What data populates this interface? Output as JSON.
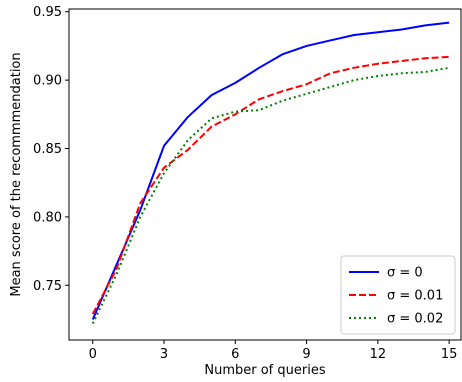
{
  "chart_data": {
    "type": "line",
    "title": "",
    "xlabel": "Number of queries",
    "ylabel": "Mean score of the recommmendation",
    "xlim": [
      -1.0,
      15.5
    ],
    "ylim": [
      0.71,
      0.952
    ],
    "xticks": [
      0,
      3,
      6,
      9,
      12,
      15
    ],
    "xtick_labels": [
      "0",
      "3",
      "6",
      "9",
      "12",
      "15"
    ],
    "yticks": [
      0.75,
      0.8,
      0.85,
      0.9,
      0.95
    ],
    "ytick_labels": [
      "0.75",
      "0.80",
      "0.85",
      "0.90",
      "0.95"
    ],
    "grid": false,
    "legend_position": "lower-right",
    "x": [
      0,
      1,
      2,
      3,
      4,
      5,
      6,
      7,
      8,
      9,
      10,
      11,
      12,
      13,
      14,
      15
    ],
    "series": [
      {
        "name": "σ = 0",
        "color": "#0000ff",
        "style": "solid",
        "values": [
          0.725,
          0.765,
          0.805,
          0.852,
          0.873,
          0.889,
          0.898,
          0.909,
          0.919,
          0.925,
          0.929,
          0.933,
          0.935,
          0.937,
          0.94,
          0.942
        ]
      },
      {
        "name": "σ = 0.01",
        "color": "#ff0000",
        "style": "dashed",
        "values": [
          0.729,
          0.762,
          0.81,
          0.836,
          0.849,
          0.866,
          0.875,
          0.886,
          0.892,
          0.897,
          0.905,
          0.909,
          0.912,
          0.914,
          0.916,
          0.917
        ]
      },
      {
        "name": "σ = 0.02",
        "color": "#008000",
        "style": "dotted",
        "values": [
          0.722,
          0.758,
          0.8,
          0.832,
          0.856,
          0.872,
          0.877,
          0.878,
          0.885,
          0.89,
          0.895,
          0.9,
          0.903,
          0.905,
          0.906,
          0.909
        ]
      }
    ]
  }
}
